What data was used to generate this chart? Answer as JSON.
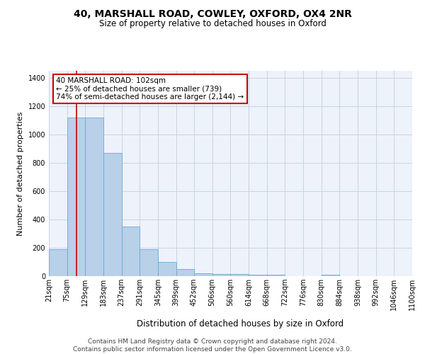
{
  "title": "40, MARSHALL ROAD, COWLEY, OXFORD, OX4 2NR",
  "subtitle": "Size of property relative to detached houses in Oxford",
  "xlabel": "Distribution of detached houses by size in Oxford",
  "ylabel": "Number of detached properties",
  "bar_color": "#b8d0e8",
  "bar_edge_color": "#6aaad4",
  "grid_color": "#c8d4e4",
  "background_color": "#eef2fa",
  "property_line_x": 102,
  "annotation_text": "40 MARSHALL ROAD: 102sqm\n← 25% of detached houses are smaller (739)\n74% of semi-detached houses are larger (2,144) →",
  "annotation_box_color": "#ffffff",
  "annotation_box_edge_color": "#cc0000",
  "annotation_text_fontsize": 7.5,
  "property_line_color": "#cc0000",
  "footer_text": "Contains HM Land Registry data © Crown copyright and database right 2024.\nContains public sector information licensed under the Open Government Licence v3.0.",
  "bin_edges": [
    21,
    75,
    129,
    183,
    237,
    291,
    345,
    399,
    452,
    506,
    560,
    614,
    668,
    722,
    776,
    830,
    884,
    938,
    992,
    1046,
    1100
  ],
  "bin_labels": [
    "21sqm",
    "75sqm",
    "129sqm",
    "183sqm",
    "237sqm",
    "291sqm",
    "345sqm",
    "399sqm",
    "452sqm",
    "506sqm",
    "560sqm",
    "614sqm",
    "668sqm",
    "722sqm",
    "776sqm",
    "830sqm",
    "884sqm",
    "938sqm",
    "992sqm",
    "1046sqm",
    "1100sqm"
  ],
  "bar_heights": [
    190,
    1120,
    1120,
    870,
    350,
    190,
    100,
    50,
    20,
    15,
    15,
    10,
    10,
    0,
    0,
    10,
    0,
    0,
    0,
    0
  ],
  "ylim": [
    0,
    1450
  ],
  "yticks": [
    0,
    200,
    400,
    600,
    800,
    1000,
    1200,
    1400
  ],
  "title_fontsize": 10,
  "subtitle_fontsize": 8.5,
  "xlabel_fontsize": 8.5,
  "ylabel_fontsize": 8,
  "tick_fontsize": 7,
  "footer_fontsize": 6.5
}
